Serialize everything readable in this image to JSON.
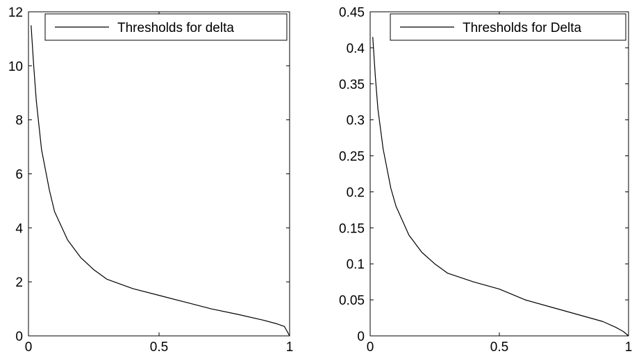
{
  "chart_data": [
    {
      "type": "line",
      "xlim": [
        0,
        1
      ],
      "ylim": [
        0,
        12
      ],
      "xticks": [
        0,
        0.5,
        1
      ],
      "xtick_labels": [
        "0",
        "0.5",
        "1"
      ],
      "yticks": [
        0,
        2,
        4,
        6,
        8,
        10,
        12
      ],
      "ytick_labels": [
        "0",
        "2",
        "4",
        "6",
        "8",
        "10",
        "12"
      ],
      "grid": false,
      "legend": "top-right",
      "series": [
        {
          "name": "Thresholds for delta",
          "color": "#000000",
          "x": [
            0.01,
            0.02,
            0.03,
            0.05,
            0.08,
            0.1,
            0.15,
            0.2,
            0.25,
            0.3,
            0.4,
            0.5,
            0.6,
            0.7,
            0.8,
            0.9,
            0.95,
            0.98,
            1.0
          ],
          "y": [
            11.5,
            10.0,
            8.7,
            6.9,
            5.4,
            4.6,
            3.55,
            2.9,
            2.45,
            2.1,
            1.75,
            1.5,
            1.25,
            1.0,
            0.8,
            0.58,
            0.45,
            0.35,
            0.0
          ]
        }
      ]
    },
    {
      "type": "line",
      "xlim": [
        0,
        1
      ],
      "ylim": [
        0,
        0.45
      ],
      "xticks": [
        0,
        0.5,
        1
      ],
      "xtick_labels": [
        "0",
        "0.5",
        "1"
      ],
      "yticks": [
        0,
        0.05,
        0.1,
        0.15,
        0.2,
        0.25,
        0.3,
        0.35,
        0.4,
        0.45
      ],
      "ytick_labels": [
        "0",
        "0.05",
        "0.1",
        "0.15",
        "0.2",
        "0.25",
        "0.3",
        "0.35",
        "0.4",
        "0.45"
      ],
      "grid": false,
      "legend": "top-right",
      "series": [
        {
          "name": "Thresholds for Delta",
          "color": "#000000",
          "x": [
            0.01,
            0.02,
            0.03,
            0.05,
            0.08,
            0.1,
            0.15,
            0.2,
            0.25,
            0.3,
            0.4,
            0.5,
            0.6,
            0.7,
            0.8,
            0.9,
            0.95,
            0.98,
            1.0
          ],
          "y": [
            0.415,
            0.36,
            0.315,
            0.26,
            0.205,
            0.18,
            0.14,
            0.116,
            0.1,
            0.087,
            0.075,
            0.065,
            0.05,
            0.04,
            0.03,
            0.02,
            0.012,
            0.006,
            0.0
          ]
        }
      ]
    }
  ]
}
